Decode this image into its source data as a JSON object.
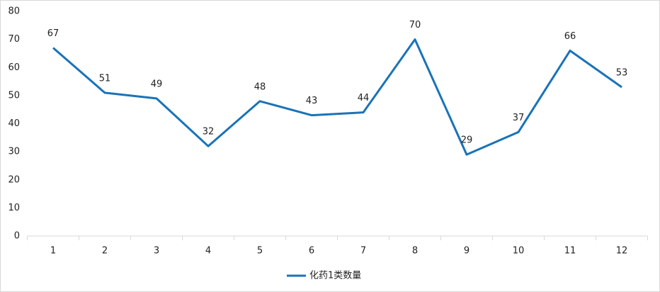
{
  "chart_data": {
    "type": "line",
    "categories": [
      "1",
      "2",
      "3",
      "4",
      "5",
      "6",
      "7",
      "8",
      "9",
      "10",
      "11",
      "12"
    ],
    "series": [
      {
        "name": "化药1类数量",
        "color": "#1a73b8",
        "values": [
          67,
          51,
          49,
          32,
          48,
          43,
          44,
          70,
          29,
          37,
          66,
          53
        ]
      }
    ],
    "ylim": [
      0,
      80
    ],
    "yticks": [
      0,
      10,
      20,
      30,
      40,
      50,
      60,
      70,
      80
    ],
    "grid": false,
    "legend": "bottom",
    "data_labels": true
  }
}
